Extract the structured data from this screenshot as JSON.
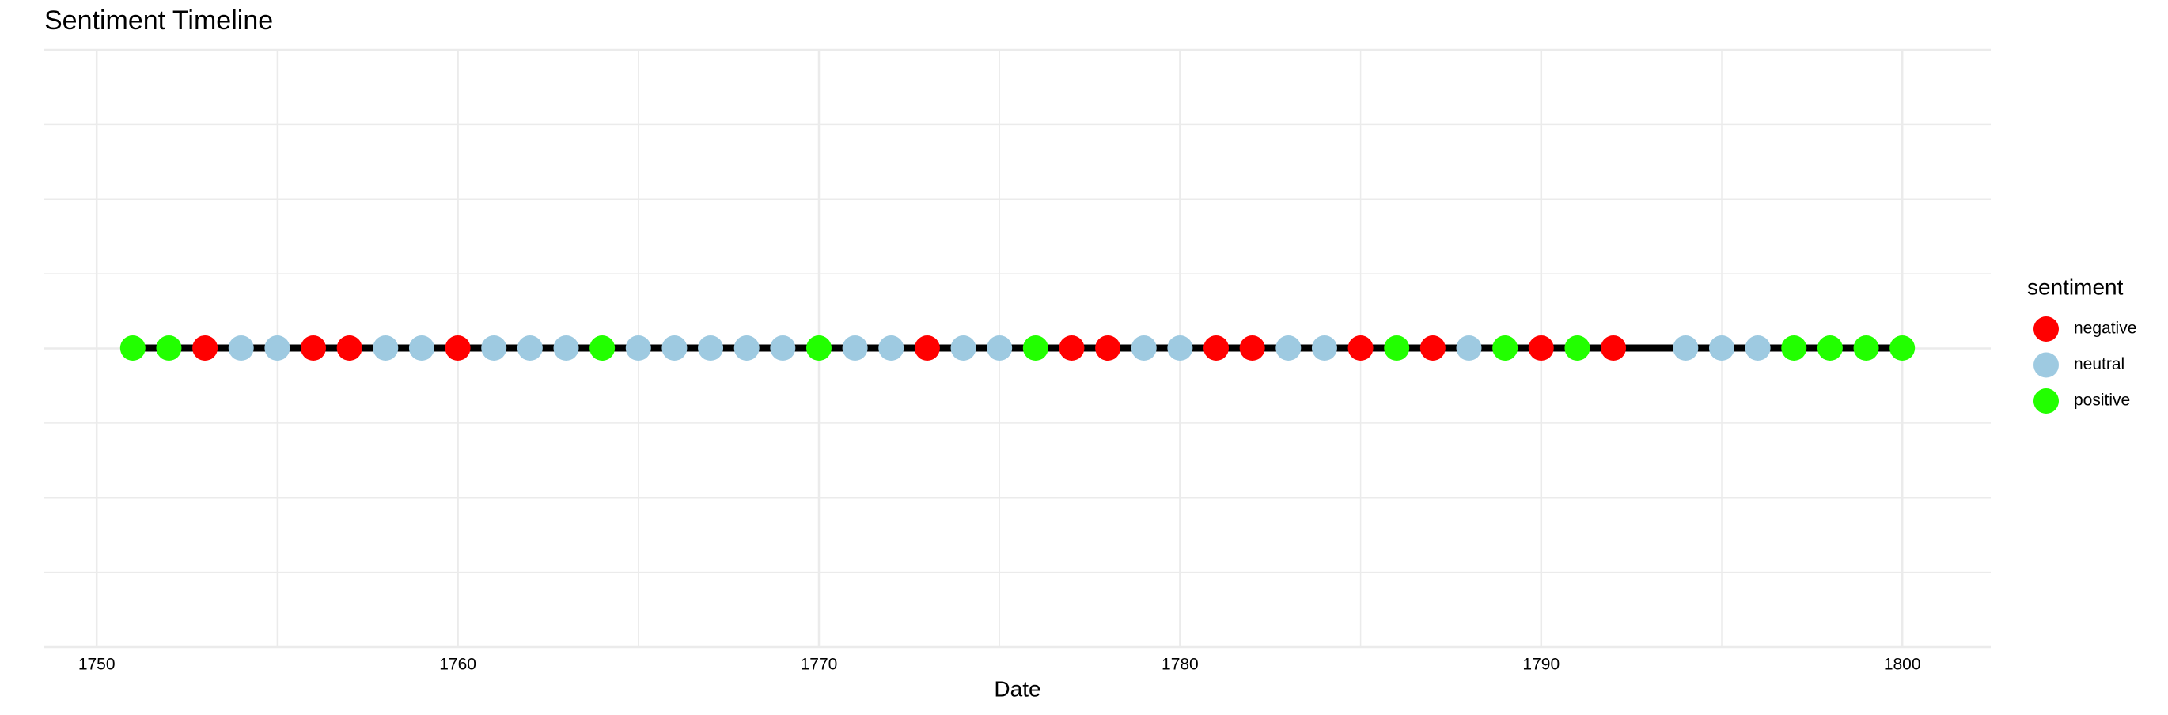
{
  "chart_data": {
    "type": "timeline",
    "title": "Sentiment Timeline",
    "x_label": "Date",
    "legend_title": "sentiment",
    "x": [
      1751,
      1752,
      1753,
      1754,
      1755,
      1756,
      1757,
      1758,
      1759,
      1760,
      1761,
      1762,
      1763,
      1764,
      1765,
      1766,
      1767,
      1768,
      1769,
      1770,
      1771,
      1772,
      1773,
      1774,
      1775,
      1776,
      1777,
      1778,
      1779,
      1780,
      1781,
      1782,
      1783,
      1784,
      1785,
      1786,
      1787,
      1788,
      1789,
      1790,
      1791,
      1792,
      1794,
      1795,
      1796,
      1797,
      1798,
      1799,
      1800
    ],
    "sentiment": [
      "positive",
      "positive",
      "negative",
      "neutral",
      "neutral",
      "negative",
      "negative",
      "neutral",
      "neutral",
      "negative",
      "neutral",
      "neutral",
      "neutral",
      "positive",
      "neutral",
      "neutral",
      "neutral",
      "neutral",
      "neutral",
      "positive",
      "neutral",
      "neutral",
      "negative",
      "neutral",
      "neutral",
      "positive",
      "negative",
      "negative",
      "neutral",
      "neutral",
      "negative",
      "negative",
      "neutral",
      "neutral",
      "negative",
      "positive",
      "negative",
      "neutral",
      "positive",
      "negative",
      "positive",
      "negative",
      "neutral",
      "neutral",
      "neutral",
      "positive",
      "positive",
      "positive",
      "positive"
    ],
    "series": [
      {
        "name": "negative",
        "color": "#ff0000"
      },
      {
        "name": "neutral",
        "color": "#9ecae1"
      },
      {
        "name": "positive",
        "color": "#22ff00"
      }
    ],
    "line_color": "#000000",
    "xlim": [
      1748.55,
      1802.45
    ],
    "xticks": [
      1750,
      1760,
      1770,
      1780,
      1790,
      1800
    ],
    "grid": true
  }
}
